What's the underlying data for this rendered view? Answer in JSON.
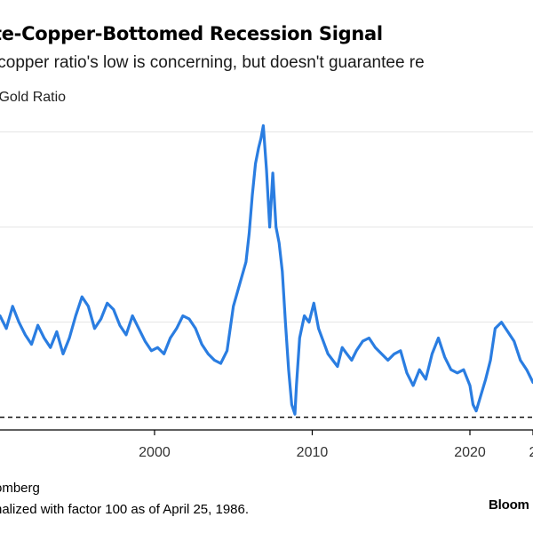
{
  "chart_data": {
    "type": "line",
    "title": "te-Copper-Bottomed Recession Signal",
    "subtitle": "/copper ratio's low is concerning, but doesn't guarantee re",
    "ylabel": "/Gold Ratio",
    "xlabel": "",
    "x_ticks": [
      "2000",
      "2010",
      "2020",
      "2"
    ],
    "x_tick_values": [
      2000,
      2010,
      2020,
      2024
    ],
    "xlim": [
      1990.2,
      2024
    ],
    "ylim": [
      16,
      118
    ],
    "grid": true,
    "gridlines": [
      20,
      50,
      80,
      110
    ],
    "threshold": 20,
    "series": [
      {
        "color": "#2a7de1",
        "x": [
          1990.2,
          1990.6,
          1991.0,
          1991.4,
          1991.8,
          1992.2,
          1992.6,
          1993.0,
          1993.4,
          1993.8,
          1994.2,
          1994.6,
          1995.0,
          1995.4,
          1995.8,
          1996.2,
          1996.6,
          1997.0,
          1997.4,
          1997.8,
          1998.2,
          1998.6,
          1999.0,
          1999.4,
          1999.8,
          2000.2,
          2000.6,
          2001.0,
          2001.4,
          2001.8,
          2002.2,
          2002.6,
          2003.0,
          2003.4,
          2003.8,
          2004.2,
          2004.6,
          2005.0,
          2005.4,
          2005.8,
          2006.0,
          2006.2,
          2006.4,
          2006.6,
          2006.75,
          2006.9,
          2007.1,
          2007.3,
          2007.5,
          2007.7,
          2007.9,
          2008.1,
          2008.3,
          2008.5,
          2008.7,
          2008.9,
          2009.0,
          2009.2,
          2009.5,
          2009.8,
          2010.1,
          2010.4,
          2010.7,
          2011.0,
          2011.3,
          2011.6,
          2011.9,
          2012.2,
          2012.5,
          2012.8,
          2013.2,
          2013.6,
          2014.0,
          2014.4,
          2014.8,
          2015.2,
          2015.6,
          2016.0,
          2016.4,
          2016.8,
          2017.2,
          2017.6,
          2018.0,
          2018.4,
          2018.8,
          2019.2,
          2019.6,
          2020.0,
          2020.2,
          2020.4,
          2020.7,
          2021.0,
          2021.3,
          2021.6,
          2022.0,
          2022.4,
          2022.8,
          2023.2,
          2023.6,
          2024.0
        ],
        "values": [
          52,
          48,
          55,
          50,
          46,
          43,
          49,
          45,
          42,
          47,
          40,
          45,
          52,
          58,
          55,
          48,
          51,
          56,
          54,
          49,
          46,
          52,
          48,
          44,
          41,
          42,
          40,
          45,
          48,
          52,
          51,
          48,
          43,
          40,
          38,
          37,
          41,
          55,
          62,
          69,
          78,
          90,
          100,
          105,
          108,
          112,
          98,
          80,
          97,
          80,
          75,
          66,
          50,
          35,
          24,
          21,
          30,
          45,
          52,
          50,
          56,
          48,
          44,
          40,
          38,
          36,
          42,
          40,
          38,
          41,
          44,
          45,
          42,
          40,
          38,
          40,
          41,
          34,
          30,
          35,
          32,
          40,
          45,
          39,
          35,
          34,
          35,
          30,
          24,
          22,
          27,
          32,
          38,
          48,
          50,
          47,
          44,
          38,
          35,
          31
        ]
      }
    ]
  },
  "source": "omberg",
  "note": "nalized with factor 100 as of April 25, 1986.",
  "brand": "Bloom"
}
